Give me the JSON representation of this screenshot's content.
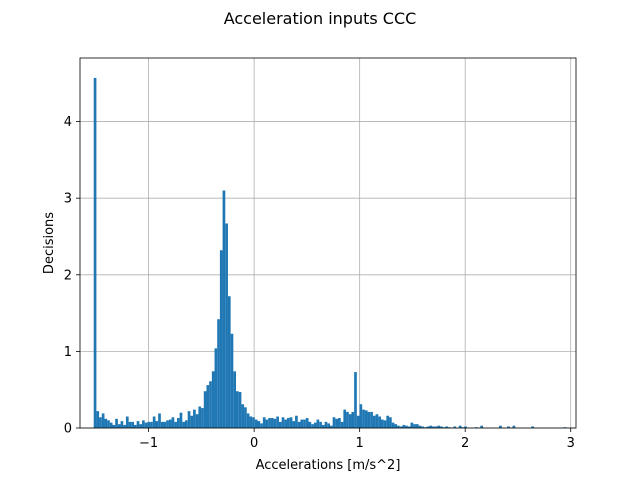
{
  "figure": {
    "title": "Acceleration inputs CCC"
  },
  "chart_data": {
    "type": "bar",
    "title": "Acceleration inputs CCC",
    "xlabel": "Accelerations [m/s^2]",
    "ylabel": "Decisions",
    "xlim": [
      -1.65,
      3.05
    ],
    "ylim": [
      0,
      4.83
    ],
    "xticks": [
      -1,
      0,
      1,
      2,
      3
    ],
    "yticks": [
      0,
      1,
      2,
      3,
      4
    ],
    "grid": true,
    "bar_color": "#1f77b4",
    "bin_width": 0.02544,
    "bin_start": -1.52,
    "values": [
      4.57,
      0.22,
      0.14,
      0.19,
      0.12,
      0.1,
      0.07,
      0.04,
      0.12,
      0.05,
      0.09,
      0.04,
      0.15,
      0.08,
      0.08,
      0.04,
      0.09,
      0.05,
      0.1,
      0.07,
      0.08,
      0.08,
      0.15,
      0.09,
      0.19,
      0.08,
      0.08,
      0.1,
      0.11,
      0.14,
      0.08,
      0.13,
      0.2,
      0.08,
      0.1,
      0.22,
      0.16,
      0.24,
      0.18,
      0.28,
      0.26,
      0.48,
      0.56,
      0.61,
      0.74,
      1.04,
      1.42,
      2.32,
      3.1,
      2.67,
      1.72,
      1.23,
      0.74,
      0.48,
      0.47,
      0.31,
      0.27,
      0.19,
      0.15,
      0.14,
      0.11,
      0.09,
      0.06,
      0.14,
      0.11,
      0.13,
      0.13,
      0.12,
      0.15,
      0.08,
      0.14,
      0.11,
      0.13,
      0.14,
      0.09,
      0.16,
      0.08,
      0.11,
      0.11,
      0.13,
      0.08,
      0.05,
      0.07,
      0.11,
      0.08,
      0.04,
      0.08,
      0.06,
      0.03,
      0.14,
      0.12,
      0.13,
      0.08,
      0.24,
      0.21,
      0.18,
      0.21,
      0.73,
      0.16,
      0.31,
      0.24,
      0.23,
      0.21,
      0.21,
      0.16,
      0.18,
      0.15,
      0.11,
      0.1,
      0.16,
      0.14,
      0.07,
      0.05,
      0.03,
      0.02,
      0.04,
      0.03,
      0.02,
      0.07,
      0.05,
      0.05,
      0.03,
      0.02,
      0.01,
      0.02,
      0.03,
      0.02,
      0.02,
      0.03,
      0.02,
      0.01,
      0.02,
      0.01,
      0.0,
      0.02,
      0.0,
      0.03,
      0.01,
      0.02,
      0.0,
      0.0,
      0.0,
      0.01,
      0.0,
      0.03,
      0.0,
      0.0,
      0.0,
      0.0,
      0.0,
      0.0,
      0.03,
      0.0,
      0.0,
      0.02,
      0.0,
      0.03,
      0.0,
      0.0,
      0.0,
      0.0,
      0.0,
      0.0,
      0.02,
      0.0,
      0.0,
      0.0,
      0.0,
      0.0,
      0.0,
      0.0,
      0.0,
      0.0,
      0.0,
      0.0,
      0.01
    ]
  }
}
